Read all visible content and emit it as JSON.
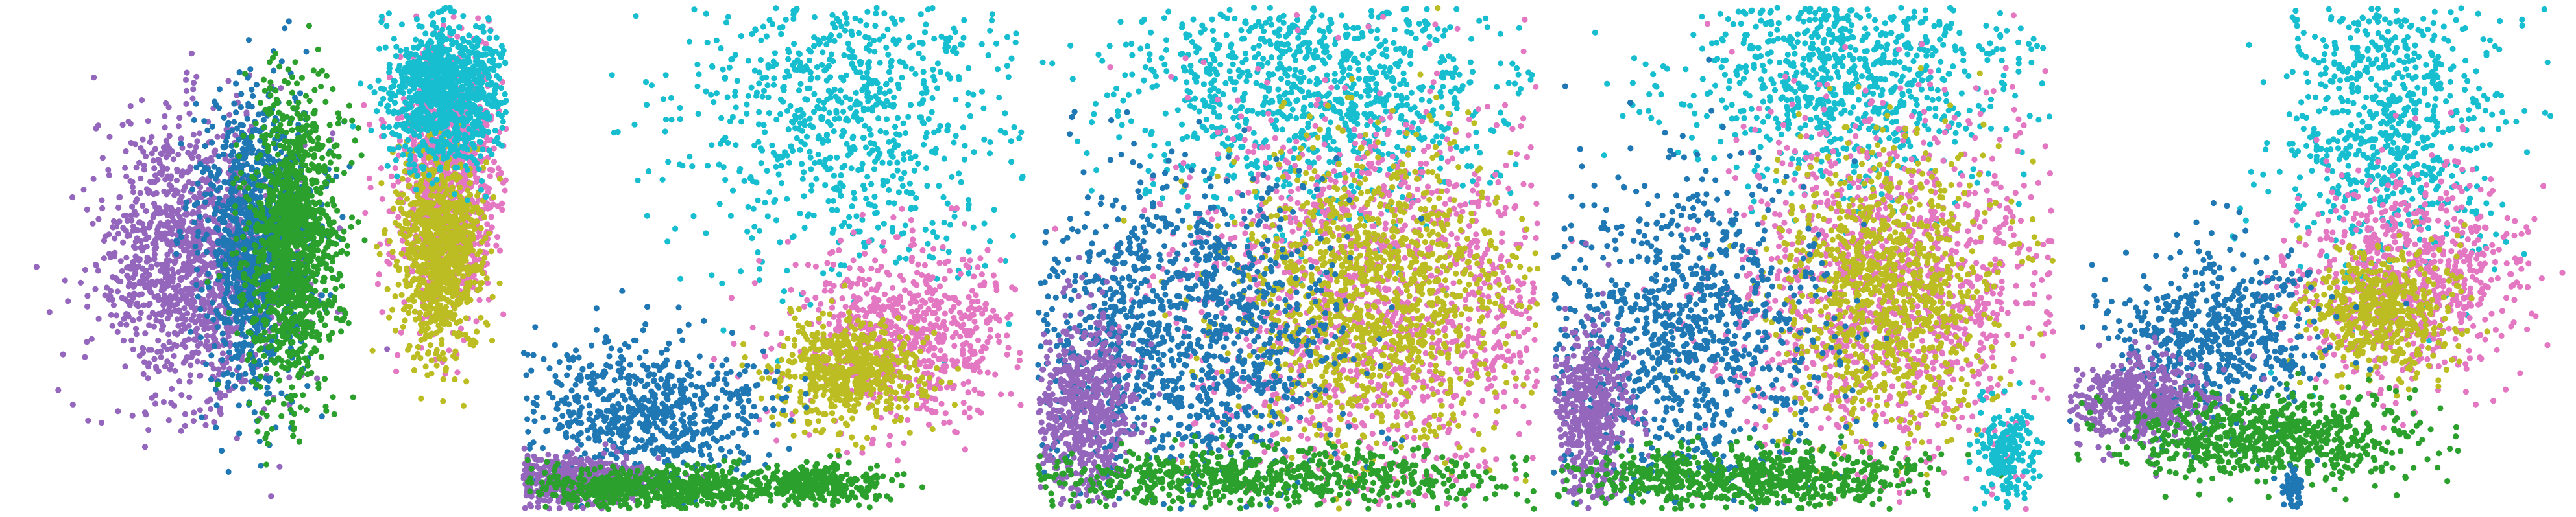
{
  "chart_data": {
    "type": "scatter",
    "grid": false,
    "legend": "none",
    "panels": [
      {
        "clusters": [
          {
            "color": "#9467bd",
            "points": 1300,
            "cx": 0.38,
            "cy": 0.5,
            "sx": 0.095,
            "sy": 0.14
          },
          {
            "color": "#1f77b4",
            "points": 1100,
            "cx": 0.5,
            "cy": 0.47,
            "sx": 0.055,
            "sy": 0.14
          },
          {
            "color": "#2ca02c",
            "points": 1300,
            "cx": 0.57,
            "cy": 0.47,
            "sx": 0.045,
            "sy": 0.14
          },
          {
            "color": "#e377c2",
            "points": 1000,
            "cx": 0.87,
            "cy": 0.35,
            "sx": 0.055,
            "sy": 0.13
          },
          {
            "color": "#bcbd22",
            "points": 900,
            "cx": 0.86,
            "cy": 0.48,
            "sx": 0.04,
            "sy": 0.1
          },
          {
            "color": "#17becf",
            "points": 1000,
            "cx": 0.87,
            "cy": 0.17,
            "sx": 0.06,
            "sy": 0.07
          }
        ]
      },
      {
        "clusters": [
          {
            "color": "#17becf",
            "points": 900,
            "cx": 0.66,
            "cy": 0.2,
            "sx": 0.16,
            "sy": 0.16
          },
          {
            "color": "#e377c2",
            "points": 700,
            "cx": 0.76,
            "cy": 0.65,
            "sx": 0.11,
            "sy": 0.09
          },
          {
            "color": "#bcbd22",
            "points": 600,
            "cx": 0.65,
            "cy": 0.72,
            "sx": 0.07,
            "sy": 0.05
          },
          {
            "color": "#1f77b4",
            "points": 700,
            "cx": 0.26,
            "cy": 0.8,
            "sx": 0.12,
            "sy": 0.07
          },
          {
            "color": "#9467bd",
            "points": 500,
            "cx": 0.1,
            "cy": 0.93,
            "sx": 0.07,
            "sy": 0.025
          },
          {
            "color": "#2ca02c",
            "points": 700,
            "cx": 0.28,
            "cy": 0.95,
            "sx": 0.13,
            "sy": 0.02
          },
          {
            "color": "#2ca02c",
            "points": 250,
            "cx": 0.6,
            "cy": 0.94,
            "sx": 0.06,
            "sy": 0.02
          }
        ]
      },
      {
        "clusters": [
          {
            "color": "#17becf",
            "points": 1100,
            "cx": 0.55,
            "cy": 0.16,
            "sx": 0.19,
            "sy": 0.13
          },
          {
            "color": "#e377c2",
            "points": 1500,
            "cx": 0.7,
            "cy": 0.58,
            "sx": 0.22,
            "sy": 0.2
          },
          {
            "color": "#bcbd22",
            "points": 1200,
            "cx": 0.67,
            "cy": 0.57,
            "sx": 0.14,
            "sy": 0.15
          },
          {
            "color": "#1f77b4",
            "points": 1200,
            "cx": 0.28,
            "cy": 0.65,
            "sx": 0.16,
            "sy": 0.16
          },
          {
            "color": "#9467bd",
            "points": 600,
            "cx": 0.1,
            "cy": 0.8,
            "sx": 0.05,
            "sy": 0.09
          },
          {
            "color": "#2ca02c",
            "points": 700,
            "cx": 0.45,
            "cy": 0.93,
            "sx": 0.24,
            "sy": 0.03
          }
        ]
      },
      {
        "clusters": [
          {
            "color": "#17becf",
            "points": 900,
            "cx": 0.58,
            "cy": 0.14,
            "sx": 0.16,
            "sy": 0.11
          },
          {
            "color": "#e377c2",
            "points": 1300,
            "cx": 0.68,
            "cy": 0.56,
            "sx": 0.17,
            "sy": 0.17
          },
          {
            "color": "#bcbd22",
            "points": 1000,
            "cx": 0.66,
            "cy": 0.56,
            "sx": 0.11,
            "sy": 0.14
          },
          {
            "color": "#1f77b4",
            "points": 1000,
            "cx": 0.26,
            "cy": 0.66,
            "sx": 0.14,
            "sy": 0.16
          },
          {
            "color": "#9467bd",
            "points": 500,
            "cx": 0.08,
            "cy": 0.8,
            "sx": 0.04,
            "sy": 0.09
          },
          {
            "color": "#2ca02c",
            "points": 700,
            "cx": 0.38,
            "cy": 0.93,
            "sx": 0.18,
            "sy": 0.03
          },
          {
            "color": "#17becf",
            "points": 200,
            "cx": 0.9,
            "cy": 0.88,
            "sx": 0.03,
            "sy": 0.05
          }
        ]
      },
      {
        "clusters": [
          {
            "color": "#17becf",
            "points": 800,
            "cx": 0.65,
            "cy": 0.22,
            "sx": 0.11,
            "sy": 0.16
          },
          {
            "color": "#e377c2",
            "points": 800,
            "cx": 0.67,
            "cy": 0.54,
            "sx": 0.11,
            "sy": 0.1
          },
          {
            "color": "#bcbd22",
            "points": 500,
            "cx": 0.62,
            "cy": 0.6,
            "sx": 0.07,
            "sy": 0.06
          },
          {
            "color": "#1f77b4",
            "points": 600,
            "cx": 0.29,
            "cy": 0.65,
            "sx": 0.1,
            "sy": 0.08
          },
          {
            "color": "#9467bd",
            "points": 500,
            "cx": 0.15,
            "cy": 0.78,
            "sx": 0.07,
            "sy": 0.04
          },
          {
            "color": "#2ca02c",
            "points": 700,
            "cx": 0.42,
            "cy": 0.85,
            "sx": 0.15,
            "sy": 0.04
          },
          {
            "color": "#1f77b4",
            "points": 60,
            "cx": 0.45,
            "cy": 0.95,
            "sx": 0.01,
            "sy": 0.02
          }
        ]
      }
    ]
  }
}
